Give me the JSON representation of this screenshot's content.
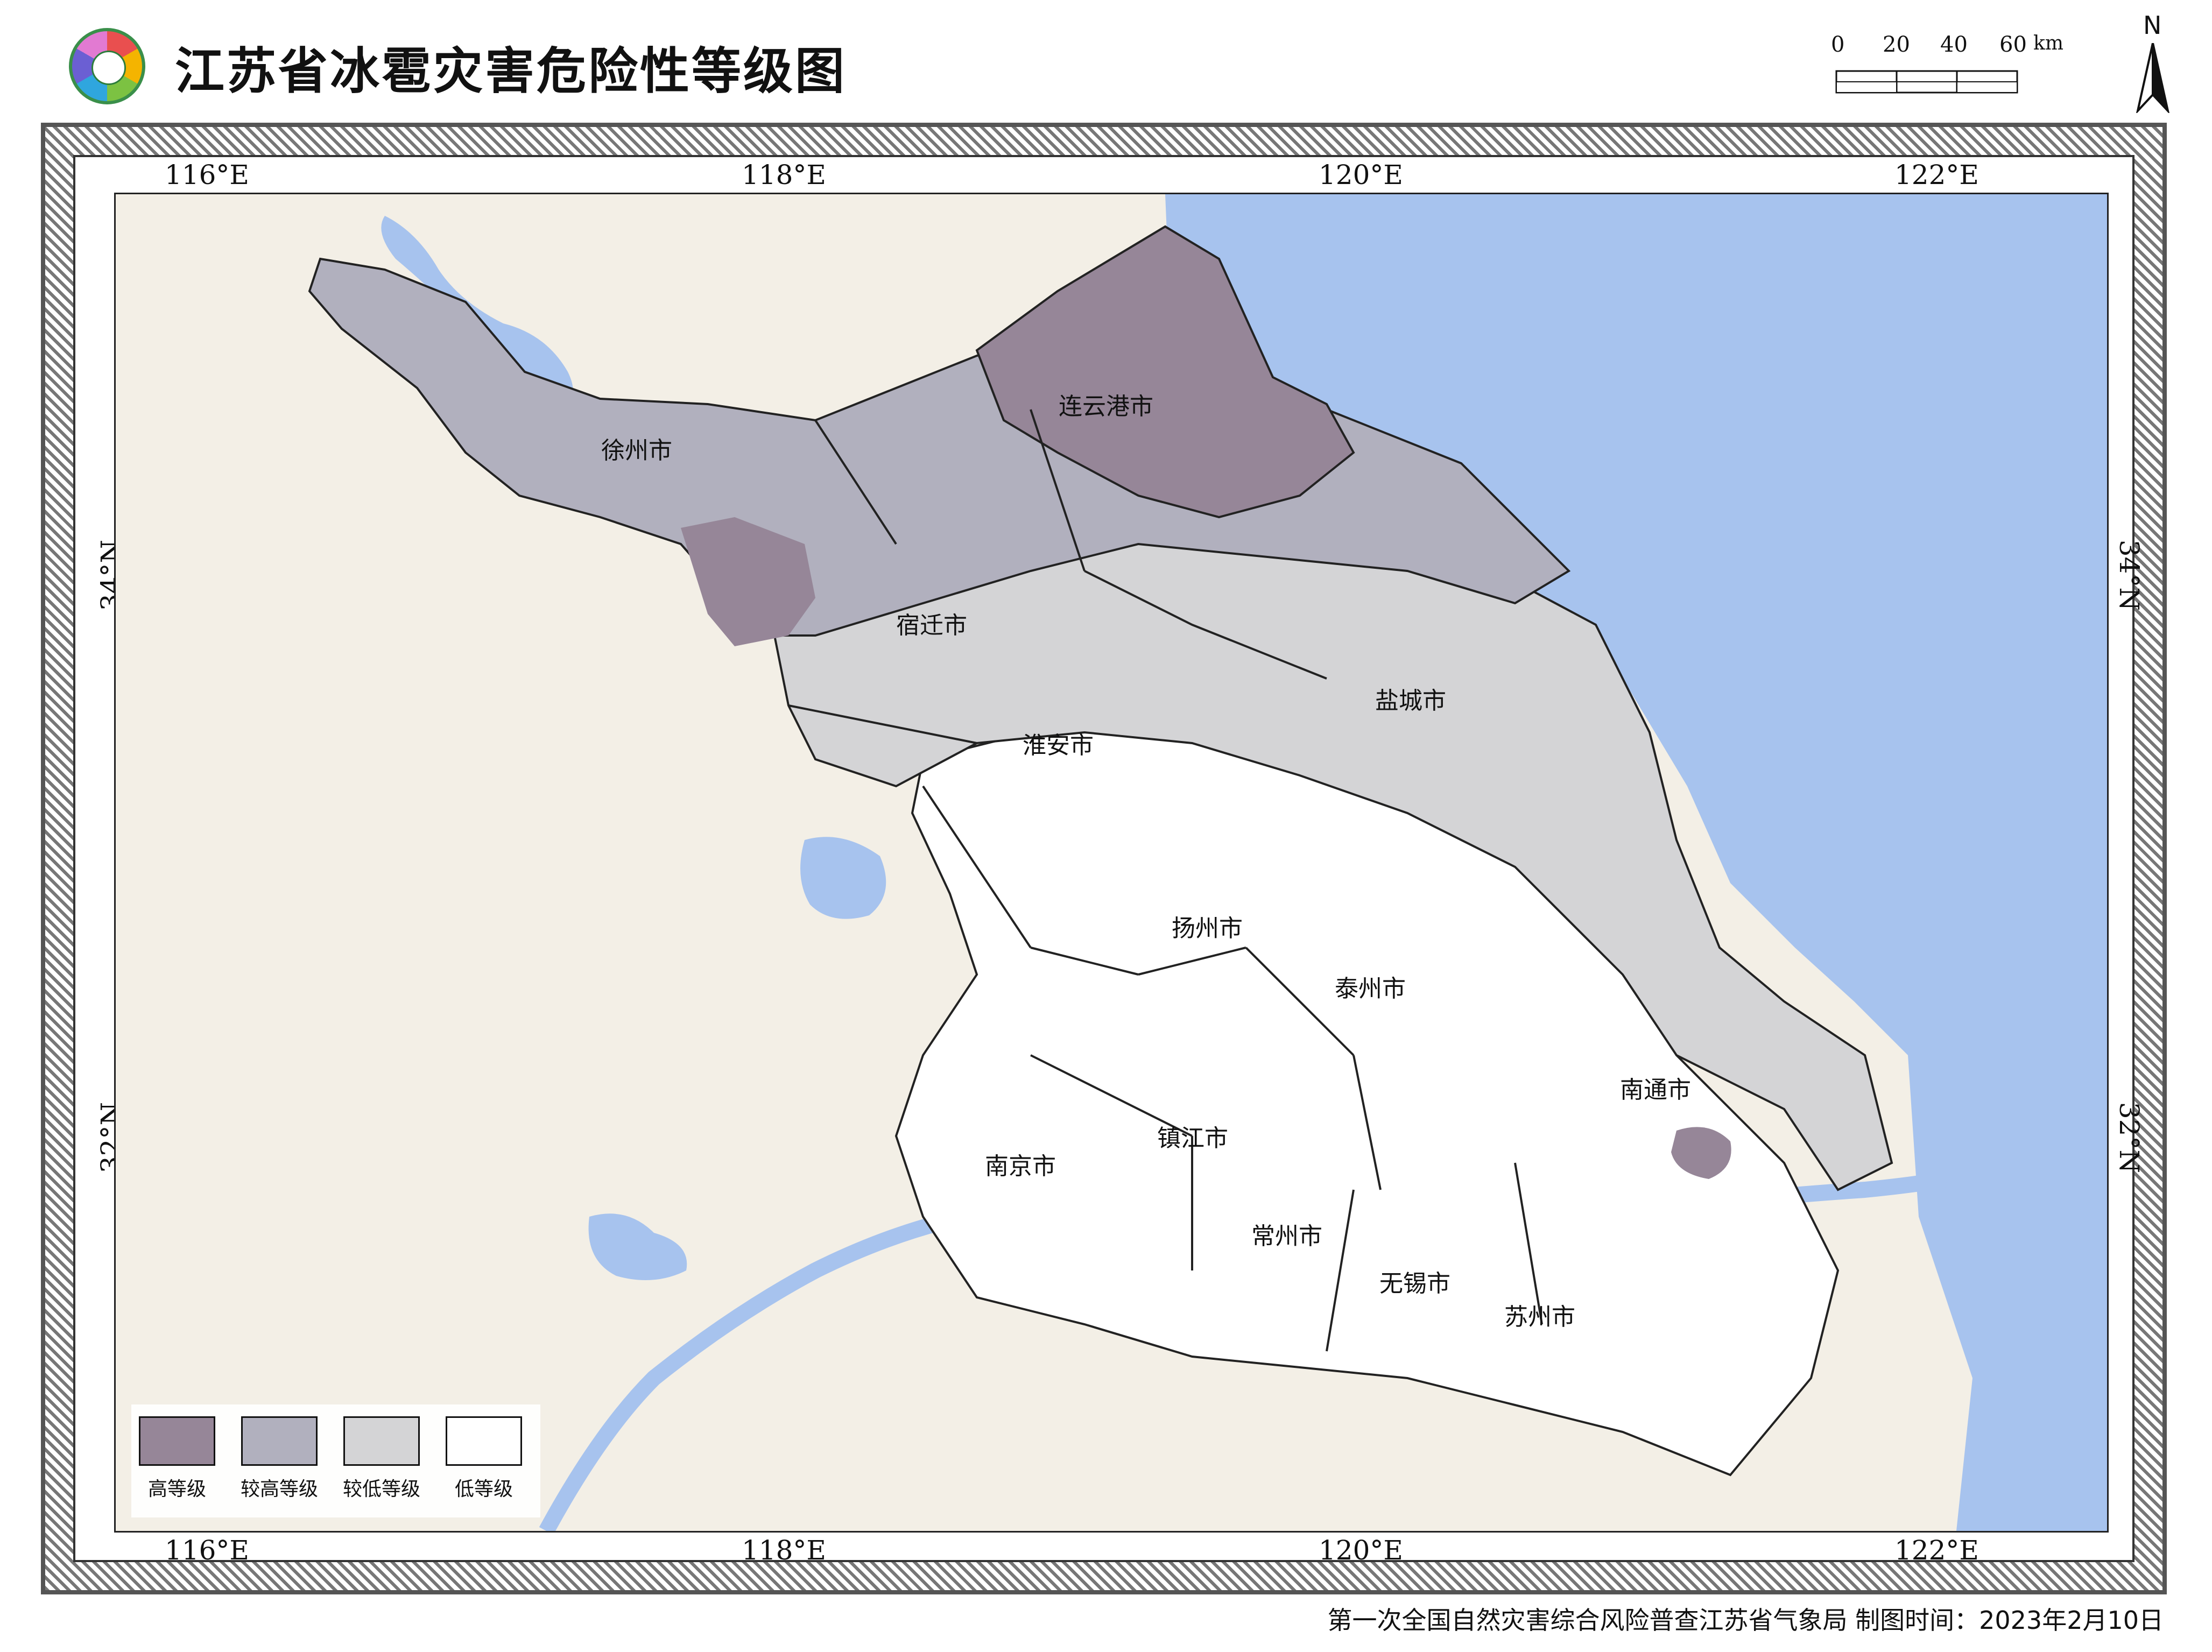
{
  "title": "江苏省冰雹灾害危险性等级图",
  "logo": {
    "name": "census-logo",
    "colors": [
      "#e94f4f",
      "#f4b400",
      "#7cc242",
      "#2fa6de",
      "#6b5fd3",
      "#e27ad2"
    ]
  },
  "scalebar": {
    "ticks": [
      "0",
      "20",
      "40",
      "60"
    ],
    "unit": "km"
  },
  "north_arrow": {
    "label": "N",
    "icon": "north-arrow-icon"
  },
  "grid_labels": {
    "top": [
      "116°E",
      "118°E",
      "120°E",
      "122°E"
    ],
    "bottom": [
      "116°E",
      "118°E",
      "120°E",
      "122°E"
    ],
    "left": [
      "34°N",
      "32°N"
    ],
    "right": [
      "34°N",
      "32°N"
    ]
  },
  "cities": [
    "徐州市",
    "连云港市",
    "宿迁市",
    "盐城市",
    "淮安市",
    "扬州市",
    "泰州市",
    "南通市",
    "镇江市",
    "南京市",
    "常州市",
    "无锡市",
    "苏州市"
  ],
  "legend": [
    {
      "label": "高等级",
      "color": "#968698"
    },
    {
      "label": "较高等级",
      "color": "#b1b0be"
    },
    {
      "label": "较低等级",
      "color": "#d4d4d6"
    },
    {
      "label": "低等级",
      "color": "#ffffff"
    }
  ],
  "colors": {
    "sea": "#a7c3ee",
    "land": "#f3efe6",
    "boundary": "#222222"
  },
  "footer": "第一次全国自然灾害综合风险普查江苏省气象局 制图时间：2023年2月10日"
}
